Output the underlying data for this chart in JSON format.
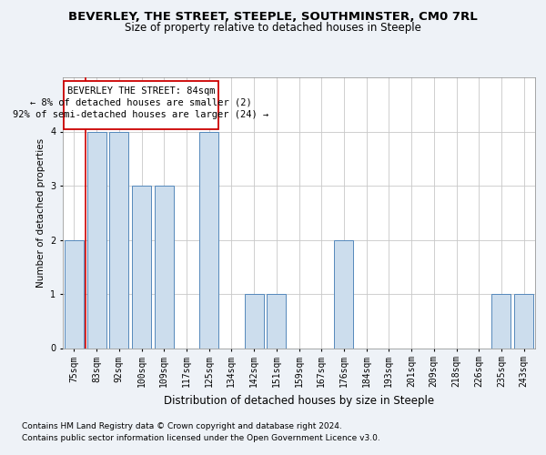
{
  "title": "BEVERLEY, THE STREET, STEEPLE, SOUTHMINSTER, CM0 7RL",
  "subtitle": "Size of property relative to detached houses in Steeple",
  "xlabel": "Distribution of detached houses by size in Steeple",
  "ylabel": "Number of detached properties",
  "categories": [
    "75sqm",
    "83sqm",
    "92sqm",
    "100sqm",
    "109sqm",
    "117sqm",
    "125sqm",
    "134sqm",
    "142sqm",
    "151sqm",
    "159sqm",
    "167sqm",
    "176sqm",
    "184sqm",
    "193sqm",
    "201sqm",
    "209sqm",
    "218sqm",
    "226sqm",
    "235sqm",
    "243sqm"
  ],
  "values": [
    2,
    4,
    4,
    3,
    3,
    0,
    4,
    0,
    1,
    1,
    0,
    0,
    2,
    0,
    0,
    0,
    0,
    0,
    0,
    1,
    1
  ],
  "bar_color": "#ccdded",
  "bar_edge_color": "#5588bb",
  "highlight_index": 1,
  "highlight_line_color": "#cc0000",
  "annotation_text_line1": "BEVERLEY THE STREET: 84sqm",
  "annotation_text_line2": "← 8% of detached houses are smaller (2)",
  "annotation_text_line3": "92% of semi-detached houses are larger (24) →",
  "annotation_box_color": "#ffffff",
  "annotation_box_edge_color": "#cc0000",
  "ylim": [
    0,
    5
  ],
  "yticks": [
    0,
    1,
    2,
    3,
    4
  ],
  "background_color": "#eef2f7",
  "plot_background": "#ffffff",
  "footer_line1": "Contains HM Land Registry data © Crown copyright and database right 2024.",
  "footer_line2": "Contains public sector information licensed under the Open Government Licence v3.0.",
  "title_fontsize": 9.5,
  "subtitle_fontsize": 8.5,
  "xlabel_fontsize": 8.5,
  "ylabel_fontsize": 7.5,
  "tick_fontsize": 7,
  "footer_fontsize": 6.5,
  "annotation_fontsize": 7.5
}
